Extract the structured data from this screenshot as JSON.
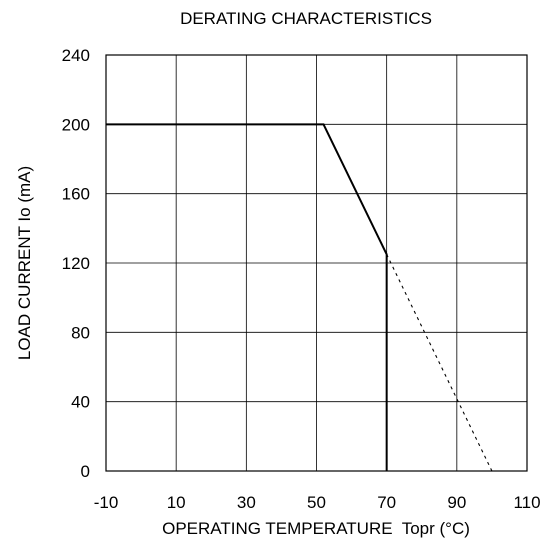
{
  "chart_data": {
    "type": "line",
    "title": "DERATING CHARACTERISTICS",
    "xlabel": "OPERATING TEMPERATURE  Topr (°C)",
    "ylabel": "LOAD CURRENT Io (mA)",
    "xlim": [
      -10,
      110
    ],
    "ylim": [
      0,
      240
    ],
    "xticks": [
      -10,
      10,
      30,
      50,
      70,
      90,
      110
    ],
    "yticks": [
      0,
      40,
      80,
      120,
      160,
      200,
      240
    ],
    "grid": true,
    "legend": "none",
    "colors": {
      "line": "#000000",
      "grid": "#000000",
      "background": "#ffffff"
    },
    "series": [
      {
        "style": "solid",
        "x": [
          -10,
          52,
          70,
          70
        ],
        "y": [
          200,
          200,
          125,
          0
        ]
      },
      {
        "style": "dashed",
        "x": [
          70,
          100
        ],
        "y": [
          125,
          0
        ]
      }
    ]
  }
}
